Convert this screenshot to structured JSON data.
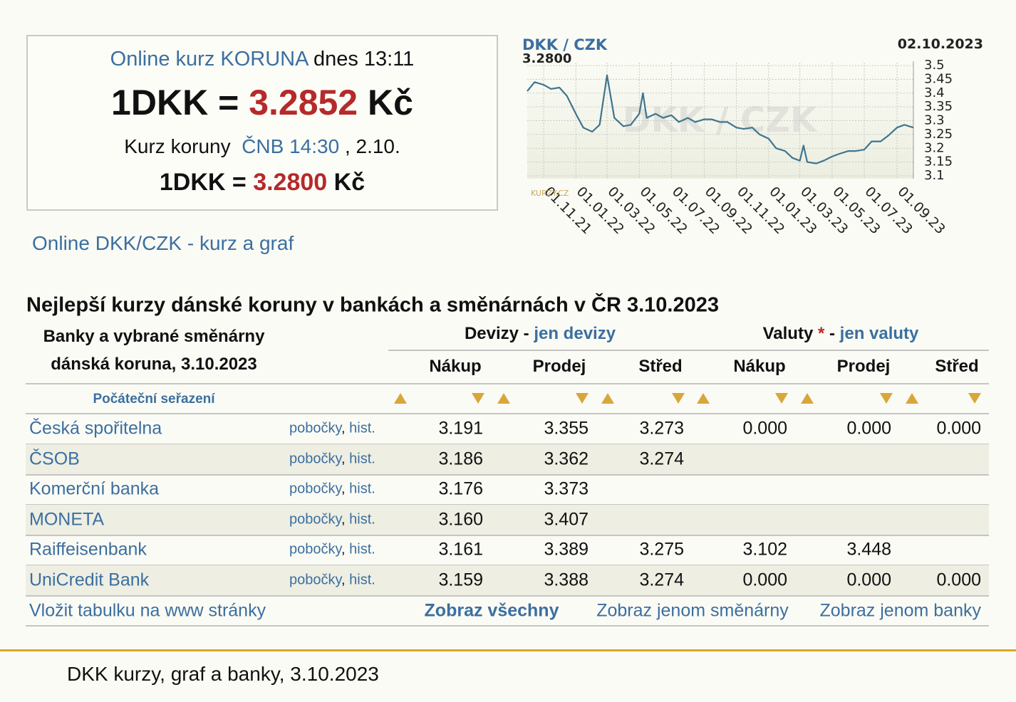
{
  "header": {
    "online_label": "Online kurz KORUNA",
    "online_time": "dnes 13:11",
    "online_lhs": "1DKK =",
    "online_rate": "3.2852",
    "online_unit": "Kč",
    "cnb_label": "Kurz koruny",
    "cnb_link": "ČNB 14:30",
    "cnb_date": ", 2.10.",
    "cnb_lhs": "1DKK =",
    "cnb_rate": "3.2800",
    "cnb_unit": "Kč"
  },
  "link_online": "Online DKK/CZK - kurz a graf",
  "chart_data": {
    "type": "line",
    "title": "DKK / CZK",
    "last_value": "3.2800",
    "date": "02.10.2023",
    "watermark": "DKK / CZK",
    "logo": "KURZY.CZ",
    "xlim": [
      "01.10.21",
      "02.10.23"
    ],
    "ylim": [
      3.1,
      3.5
    ],
    "xticks": [
      "01.11.21",
      "01.01.22",
      "01.03.22",
      "01.05.22",
      "01.07.22",
      "01.09.22",
      "01.11.22",
      "01.01.23",
      "01.03.23",
      "01.05.23",
      "01.07.23",
      "01.09.23"
    ],
    "yticks": [
      3.5,
      3.45,
      3.4,
      3.35,
      3.3,
      3.25,
      3.2,
      3.15,
      3.1
    ],
    "grid": true,
    "series": [
      {
        "name": "DKK / CZK",
        "color": "#3f7590",
        "x": [
          "01.10.21",
          "15.10.21",
          "01.11.21",
          "15.11.21",
          "01.12.21",
          "15.12.21",
          "01.01.22",
          "15.01.22",
          "01.02.22",
          "15.02.22",
          "01.03.22",
          "15.03.22",
          "01.04.22",
          "15.04.22",
          "01.05.22",
          "08.05.22",
          "15.05.22",
          "01.06.22",
          "15.06.22",
          "01.07.22",
          "15.07.22",
          "01.08.22",
          "15.08.22",
          "01.09.22",
          "15.09.22",
          "01.10.22",
          "15.10.22",
          "01.11.22",
          "15.11.22",
          "01.12.22",
          "15.12.22",
          "01.01.23",
          "15.01.23",
          "01.02.23",
          "15.02.23",
          "01.03.23",
          "08.03.23",
          "15.03.23",
          "01.04.23",
          "15.04.23",
          "01.05.23",
          "15.05.23",
          "01.06.23",
          "15.06.23",
          "01.07.23",
          "15.07.23",
          "01.08.23",
          "15.08.23",
          "01.09.23",
          "15.09.23",
          "02.10.23"
        ],
        "values": [
          3.407,
          3.44,
          3.43,
          3.415,
          3.42,
          3.39,
          3.325,
          3.275,
          3.26,
          3.285,
          3.465,
          3.31,
          3.28,
          3.285,
          3.325,
          3.4,
          3.31,
          3.325,
          3.31,
          3.32,
          3.295,
          3.31,
          3.295,
          3.305,
          3.305,
          3.295,
          3.295,
          3.275,
          3.27,
          3.275,
          3.25,
          3.235,
          3.2,
          3.19,
          3.165,
          3.155,
          3.21,
          3.15,
          3.145,
          3.155,
          3.17,
          3.18,
          3.19,
          3.19,
          3.195,
          3.225,
          3.225,
          3.245,
          3.275,
          3.285,
          3.275
        ]
      }
    ]
  },
  "table": {
    "title": "Nejlepší kurzy dánské koruny v bankách a směnárnách v ČR 3.10.2023",
    "corner_line1": "Banky a vybrané směnárny",
    "corner_line2": "dánská koruna, 3.10.2023",
    "group1": "Devizy",
    "group1_dash": "-",
    "group1_link": "jen devizy",
    "group2": "Valuty",
    "group2_star": "*",
    "group2_dash": "-",
    "group2_link": "jen valuty",
    "columns": [
      "Nákup",
      "Prodej",
      "Střed",
      "Nákup",
      "Prodej",
      "Střed"
    ],
    "sort_reset": "Počáteční seřazení",
    "link_separator": ",",
    "rows": [
      {
        "name": "Česká spořitelna",
        "branches": "pobočky",
        "history": "hist.",
        "values": [
          "3.191",
          "3.355",
          "3.273",
          "0.000",
          "0.000",
          "0.000"
        ]
      },
      {
        "name": "ČSOB",
        "branches": "pobočky",
        "history": "hist.",
        "values": [
          "3.186",
          "3.362",
          "3.274",
          null,
          null,
          null
        ]
      },
      {
        "name": "Komerční banka",
        "branches": "pobočky",
        "history": "hist.",
        "values": [
          "3.176",
          "3.373",
          null,
          null,
          null,
          null
        ]
      },
      {
        "name": "MONETA",
        "branches": "pobočky",
        "history": "hist.",
        "values": [
          "3.160",
          "3.407",
          null,
          null,
          null,
          null
        ]
      },
      {
        "name": "Raiffeisenbank",
        "branches": "pobočky",
        "history": "hist.",
        "values": [
          "3.161",
          "3.389",
          "3.275",
          "3.102",
          "3.448",
          null
        ]
      },
      {
        "name": "UniCredit Bank",
        "branches": "pobočky",
        "history": "hist.",
        "values": [
          "3.159",
          "3.388",
          "3.274",
          "0.000",
          "0.000",
          "0.000"
        ]
      }
    ],
    "footer": {
      "embed": "Vložit tabulku na www stránky",
      "show_all": "Zobraz všechny",
      "show_exchanges": "Zobraz jenom směnárny",
      "show_banks": "Zobraz jenom banky"
    }
  },
  "page_footer": "DKK kurzy, graf a banky, 3.10.2023"
}
